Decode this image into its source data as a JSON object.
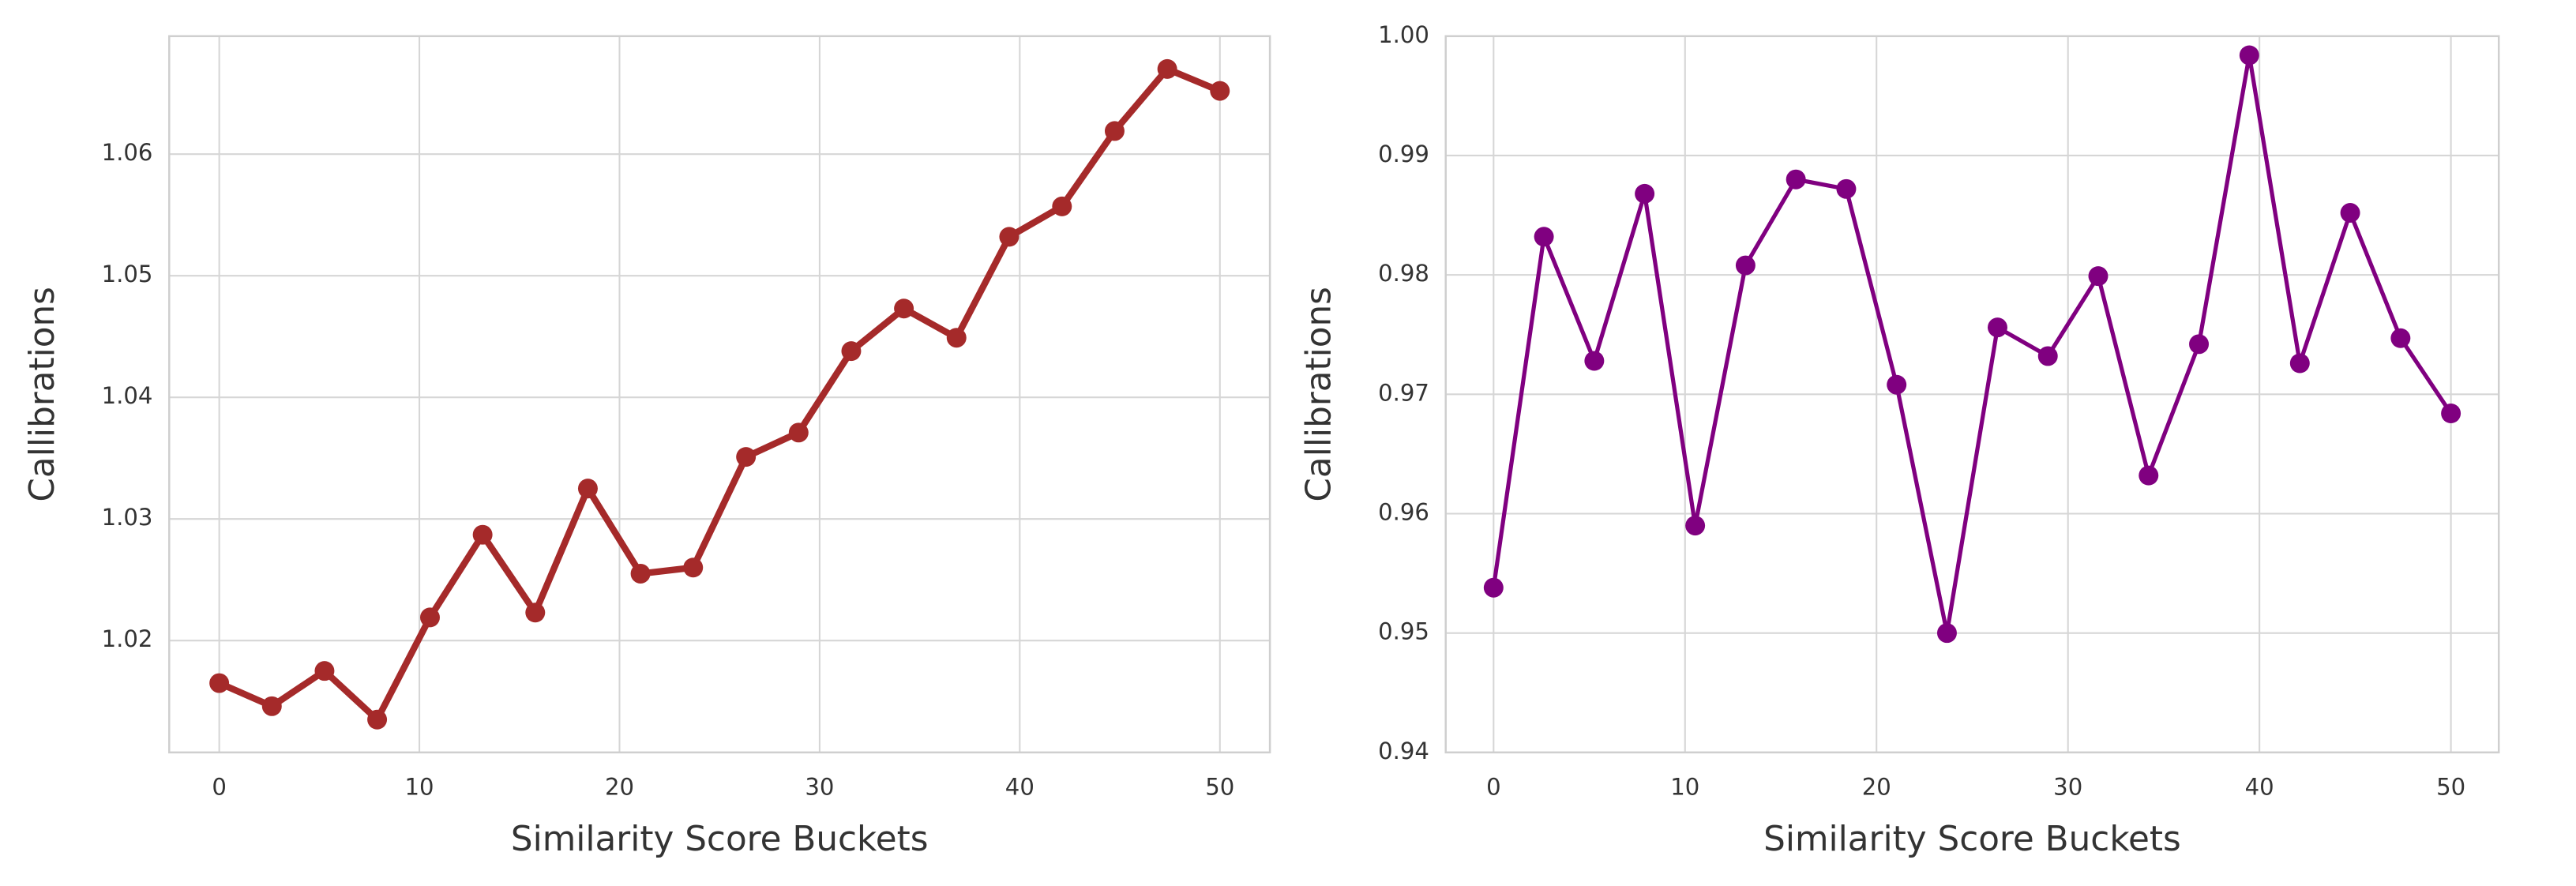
{
  "chart_data": [
    {
      "type": "line",
      "x_label": "Similarity Score Buckets",
      "y_label": "Callibrations",
      "x": [
        0,
        2.63,
        5.26,
        7.89,
        10.53,
        13.16,
        15.79,
        18.42,
        21.05,
        23.68,
        26.32,
        28.95,
        31.58,
        34.21,
        36.84,
        39.47,
        42.11,
        44.74,
        47.37,
        50
      ],
      "values": [
        1.0165,
        1.0146,
        1.0175,
        1.0135,
        1.0219,
        1.0287,
        1.0223,
        1.0325,
        1.0255,
        1.026,
        1.0351,
        1.0371,
        1.0438,
        1.0473,
        1.0449,
        1.0532,
        1.0557,
        1.0619,
        1.067,
        1.0652
      ],
      "color": "#a52a2a",
      "line_width": 4,
      "xlim": [
        -2.5,
        52.5
      ],
      "xticks": [
        0,
        10,
        20,
        30,
        40,
        50
      ],
      "ylim": [
        1.0108,
        1.0697
      ],
      "yticks": [
        1.02,
        1.03,
        1.04,
        1.05,
        1.06
      ],
      "grid": true
    },
    {
      "type": "line",
      "x_label": "Similarity Score Buckets",
      "y_label": "Callibrations",
      "x": [
        0,
        2.63,
        5.26,
        7.89,
        10.53,
        13.16,
        15.79,
        18.42,
        21.05,
        23.68,
        26.32,
        28.95,
        31.58,
        34.21,
        36.84,
        39.47,
        42.11,
        44.74,
        47.37,
        50
      ],
      "values": [
        0.9538,
        0.9832,
        0.9728,
        0.9868,
        0.959,
        0.9808,
        0.988,
        0.9872,
        0.9708,
        0.95,
        0.9756,
        0.9732,
        0.9799,
        0.9632,
        0.9742,
        0.9984,
        0.9726,
        0.9852,
        0.9747,
        0.9684
      ],
      "color": "#800080",
      "line_width": 2.5,
      "xlim": [
        -2.5,
        52.5
      ],
      "xticks": [
        0,
        10,
        20,
        30,
        40,
        50
      ],
      "ylim": [
        0.94,
        1.0
      ],
      "yticks": [
        0.94,
        0.95,
        0.96,
        0.97,
        0.98,
        0.99,
        {
          "value": 1.0,
          "label": "1.00"
        }
      ],
      "grid": true
    }
  ]
}
